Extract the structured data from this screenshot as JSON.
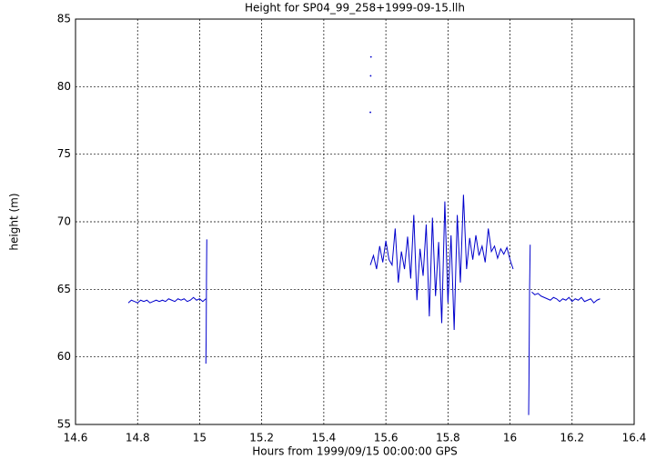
{
  "chart_data": {
    "type": "line",
    "title": "Height for SP04_99_258+1999-09-15.llh",
    "x_label": "Hours from 1999/09/15 00:00:00 GPS",
    "y_label": "height (m)",
    "xlim": [
      14.6,
      16.4
    ],
    "xticks": [
      14.6,
      14.8,
      15,
      15.2,
      15.4,
      15.6,
      15.8,
      16,
      16.2,
      16.4
    ],
    "ylim": [
      55,
      85
    ],
    "yticks": [
      55,
      60,
      65,
      70,
      75,
      80,
      85
    ],
    "grid": true,
    "series": [
      {
        "color": "#0000cc",
        "x": [
          14.77,
          14.78,
          14.79,
          14.8,
          14.81,
          14.82,
          14.83,
          14.84,
          14.85,
          14.86,
          14.87,
          14.88,
          14.89,
          14.9,
          14.91,
          14.92,
          14.93,
          14.94,
          14.95,
          14.96,
          14.97,
          14.98,
          14.99,
          15,
          15.01,
          15.02,
          null,
          15.02,
          15.021,
          15.022,
          15.023,
          null,
          15.55,
          null,
          15.551,
          null,
          15.552,
          null,
          15.55,
          15.56,
          15.57,
          15.58,
          15.59,
          15.6,
          15.61,
          15.62,
          15.63,
          15.64,
          15.65,
          15.66,
          15.67,
          15.68,
          15.69,
          15.7,
          15.71,
          15.72,
          15.73,
          15.74,
          15.75,
          15.76,
          15.77,
          15.78,
          15.79,
          15.8,
          15.81,
          15.82,
          15.83,
          15.84,
          15.85,
          15.86,
          15.87,
          15.88,
          15.89,
          15.9,
          15.91,
          15.92,
          15.93,
          15.94,
          15.95,
          15.96,
          15.97,
          15.98,
          15.99,
          16,
          16.01,
          null,
          16.06,
          16.061,
          16.062,
          16.063,
          16.065,
          null,
          16.07,
          16.08,
          16.09,
          16.1,
          16.11,
          16.12,
          16.13,
          16.14,
          16.15,
          16.16,
          16.17,
          16.18,
          16.19,
          16.2,
          16.21,
          16.22,
          16.23,
          16.24,
          16.25,
          16.26,
          16.27,
          16.28,
          16.29
        ],
        "values": [
          64.0,
          64.2,
          64.1,
          64.0,
          64.2,
          64.1,
          64.2,
          64.0,
          64.1,
          64.2,
          64.1,
          64.2,
          64.1,
          64.3,
          64.2,
          64.1,
          64.3,
          64.2,
          64.3,
          64.1,
          64.2,
          64.4,
          64.2,
          64.3,
          64.1,
          64.3,
          null,
          59.5,
          61.5,
          65.8,
          68.7,
          null,
          78.1,
          null,
          80.8,
          null,
          82.2,
          null,
          66.8,
          67.5,
          66.5,
          68.2,
          67.0,
          68.6,
          67.2,
          66.8,
          69.5,
          65.5,
          67.8,
          66.5,
          68.9,
          65.8,
          70.5,
          64.2,
          68.0,
          66.0,
          69.8,
          63.0,
          70.3,
          64.5,
          68.5,
          62.5,
          71.5,
          64.0,
          69.0,
          62.0,
          70.5,
          65.5,
          72.0,
          66.5,
          68.8,
          67.2,
          69.0,
          67.5,
          68.2,
          67.0,
          69.5,
          67.8,
          68.2,
          67.3,
          68.0,
          67.6,
          68.1,
          67.2,
          66.5,
          null,
          55.7,
          58.0,
          61.5,
          65.0,
          68.3,
          null,
          64.8,
          64.6,
          64.7,
          64.5,
          64.4,
          64.3,
          64.2,
          64.4,
          64.3,
          64.1,
          64.3,
          64.2,
          64.4,
          64.1,
          64.3,
          64.2,
          64.4,
          64.1,
          64.2,
          64.3,
          64.0,
          64.2,
          64.3
        ]
      }
    ]
  }
}
